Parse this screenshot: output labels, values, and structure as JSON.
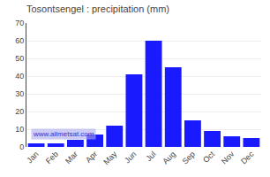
{
  "chart_data": {
    "type": "bar",
    "title": "Tosontsengel : precipitation (mm)",
    "categories": [
      "Jan",
      "Feb",
      "Mar",
      "Apr",
      "May",
      "Jun",
      "Jul",
      "Aug",
      "Sep",
      "Oct",
      "Nov",
      "Dec"
    ],
    "values": [
      2,
      2,
      4,
      7,
      12,
      41,
      60,
      45,
      15,
      9,
      6,
      5
    ],
    "color": "#1a1aff",
    "ylim": [
      0,
      70
    ],
    "yticks": [
      0,
      10,
      20,
      30,
      40,
      50,
      60,
      70
    ],
    "grid": true,
    "annotations": [
      "www.allmetsat.com"
    ]
  }
}
